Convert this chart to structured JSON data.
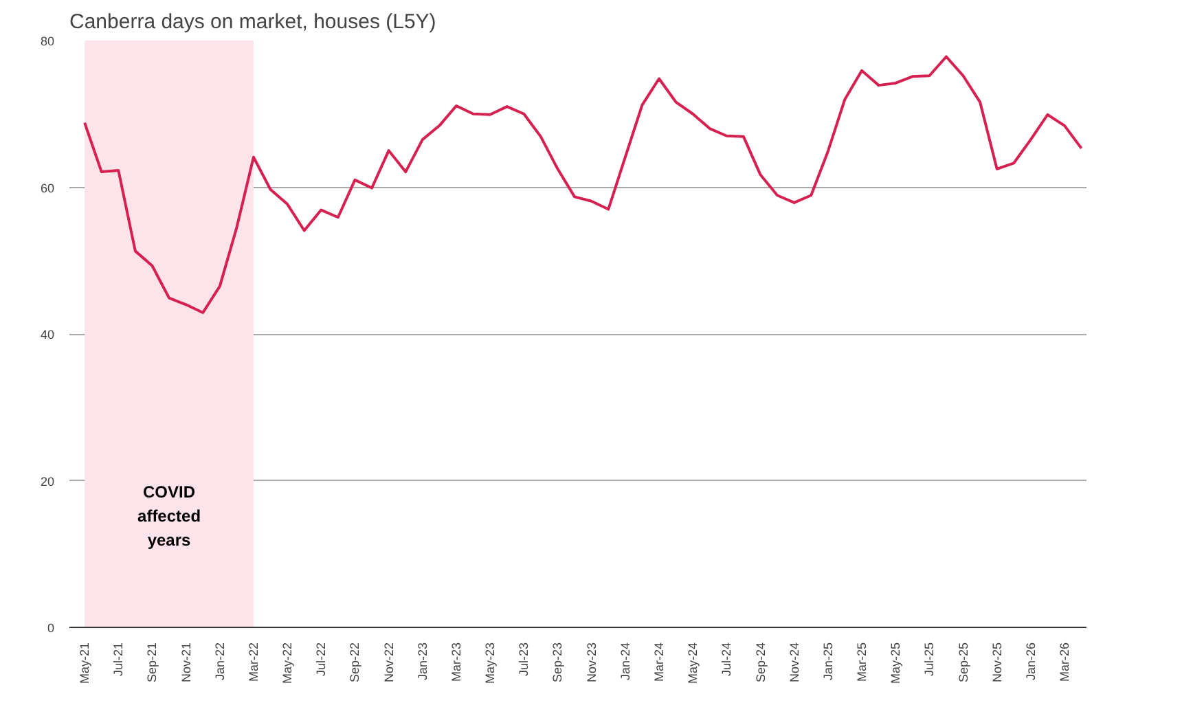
{
  "chart_data": {
    "type": "line",
    "title": "Canberra days on market, houses (L5Y)",
    "x": [
      "2021-05",
      "2021-06",
      "2021-07",
      "2021-08",
      "2021-09",
      "2021-10",
      "2021-11",
      "2021-12",
      "2022-01",
      "2022-02",
      "2022-03",
      "2022-04",
      "2022-05",
      "2022-06",
      "2022-07",
      "2022-08",
      "2022-09",
      "2022-10",
      "2022-11",
      "2022-12",
      "2023-01",
      "2023-02",
      "2023-03",
      "2023-04",
      "2023-05",
      "2023-06",
      "2023-07",
      "2023-08",
      "2023-09",
      "2023-10",
      "2023-11",
      "2023-12",
      "2024-01",
      "2024-02",
      "2024-03",
      "2024-04",
      "2024-05",
      "2024-06",
      "2024-07",
      "2024-08",
      "2024-09",
      "2024-10",
      "2024-11",
      "2024-12",
      "2025-01",
      "2025-02",
      "2025-03",
      "2025-04",
      "2025-05",
      "2025-06",
      "2025-07",
      "2025-08",
      "2025-09",
      "2025-10",
      "2025-11",
      "2025-12",
      "2026-01",
      "2026-02",
      "2026-03",
      "2026-04"
    ],
    "series": [
      {
        "color": "#d62150",
        "values": [
          68.8,
          62.1,
          62.3,
          51.3,
          49.3,
          44.9,
          44.0,
          42.9,
          46.5,
          54.5,
          64.1,
          59.7,
          57.7,
          54.1,
          56.9,
          55.9,
          61.0,
          59.9,
          65.0,
          62.1,
          66.5,
          68.4,
          71.1,
          70.0,
          69.9,
          71.0,
          70.0,
          66.9,
          62.5,
          58.7,
          58.1,
          57.0,
          64.1,
          71.2,
          74.8,
          71.6,
          70.0,
          68.0,
          67.0,
          66.9,
          61.7,
          58.9,
          57.9,
          58.9,
          64.9,
          72.0,
          75.9,
          73.9,
          74.2,
          75.1,
          75.2,
          77.8,
          75.2,
          71.6,
          62.5,
          63.3,
          66.5,
          69.9,
          68.4,
          65.3
        ]
      }
    ],
    "xlim": [
      "2021-04-04",
      "2026-04-10"
    ],
    "xticks": [
      {
        "value": "2021-05",
        "label": "May-21"
      },
      {
        "value": "2021-07",
        "label": "Jul-21"
      },
      {
        "value": "2021-09",
        "label": "Sep-21"
      },
      {
        "value": "2021-11",
        "label": "Nov-21"
      },
      {
        "value": "2022-01",
        "label": "Jan-22"
      },
      {
        "value": "2022-03",
        "label": "Mar-22"
      },
      {
        "value": "2022-05",
        "label": "May-22"
      },
      {
        "value": "2022-07",
        "label": "Jul-22"
      },
      {
        "value": "2022-09",
        "label": "Sep-22"
      },
      {
        "value": "2022-11",
        "label": "Nov-22"
      },
      {
        "value": "2023-01",
        "label": "Jan-23"
      },
      {
        "value": "2023-03",
        "label": "Mar-23"
      },
      {
        "value": "2023-05",
        "label": "May-23"
      },
      {
        "value": "2023-07",
        "label": "Jul-23"
      },
      {
        "value": "2023-09",
        "label": "Sep-23"
      },
      {
        "value": "2023-11",
        "label": "Nov-23"
      },
      {
        "value": "2024-01",
        "label": "Jan-24"
      },
      {
        "value": "2024-03",
        "label": "Mar-24"
      },
      {
        "value": "2024-05",
        "label": "May-24"
      },
      {
        "value": "2024-07",
        "label": "Jul-24"
      },
      {
        "value": "2024-09",
        "label": "Sep-24"
      },
      {
        "value": "2024-11",
        "label": "Nov-24"
      },
      {
        "value": "2025-01",
        "label": "Jan-25"
      },
      {
        "value": "2025-03",
        "label": "Mar-25"
      },
      {
        "value": "2025-05",
        "label": "May-25"
      },
      {
        "value": "2025-07",
        "label": "Jul-25"
      },
      {
        "value": "2025-09",
        "label": "Sep-25"
      },
      {
        "value": "2025-11",
        "label": "Nov-25"
      },
      {
        "value": "2026-01",
        "label": "Jan-26"
      },
      {
        "value": "2026-03",
        "label": "Mar-26"
      }
    ],
    "ylim": [
      0,
      80
    ],
    "yticks": [
      0,
      20,
      40,
      60,
      80
    ],
    "grid": "y",
    "line_style": "solid",
    "bands": [
      {
        "axis": "x",
        "from": "2021-05",
        "to": "2022-03",
        "label": "COVID\naffected\nyears",
        "color": "#fce4ea"
      }
    ]
  }
}
